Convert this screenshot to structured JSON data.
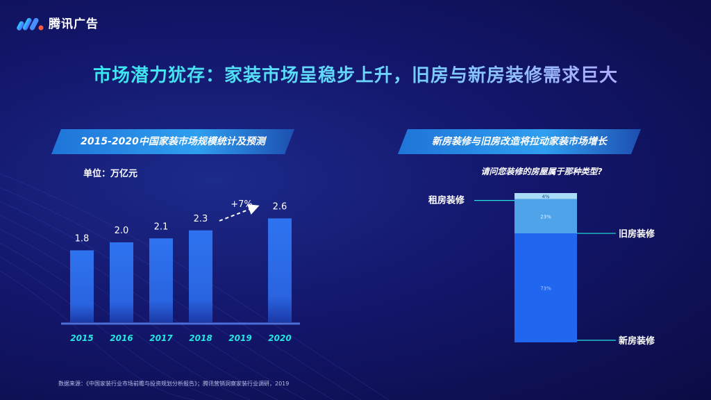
{
  "brand": {
    "name": "腾讯广告"
  },
  "title": "市场潜力犹存：家装市场呈稳步上升，旧房与新房装修需求巨大",
  "left_panel": {
    "banner": "2015-2020中国家装市场规模统计及预测",
    "unit": "单位：万亿元",
    "growth_label": "+7%"
  },
  "right_panel": {
    "banner": "新房装修与旧房改造将拉动家装市场增长",
    "question": "请问您装修的房屋属于那种类型?"
  },
  "footnote": "数据来源：《中国家装行业市场前瞻与投资规划分析报告》；腾讯营销洞察家装行业调研，2019",
  "colors": {
    "bar": "#2f73f0",
    "teal": "#25e6e0",
    "stack_top": "#a9dcf7",
    "stack_mid": "#4fa3e8",
    "stack_bottom": "#2166ee"
  },
  "chart_data": [
    {
      "type": "bar",
      "title": "2015-2020中国家装市场规模统计及预测",
      "ylabel": "单位：万亿元",
      "categories": [
        "2015",
        "2016",
        "2017",
        "2018",
        "2019",
        "2020"
      ],
      "values": [
        1.8,
        2.0,
        2.1,
        2.3,
        null,
        2.6
      ],
      "value_labels": [
        "1.8",
        "2.0",
        "2.1",
        "2.3",
        "",
        "2.6"
      ],
      "annotation": "+7%"
    },
    {
      "type": "bar",
      "stacked": true,
      "title": "请问您装修的房屋属于那种类型?",
      "categories": [
        ""
      ],
      "series": [
        {
          "name": "新房装修",
          "values": [
            73
          ],
          "label": "73%"
        },
        {
          "name": "旧房装修",
          "values": [
            23
          ],
          "label": "23%"
        },
        {
          "name": "租房装修",
          "values": [
            4
          ],
          "label": "4%"
        }
      ]
    }
  ]
}
